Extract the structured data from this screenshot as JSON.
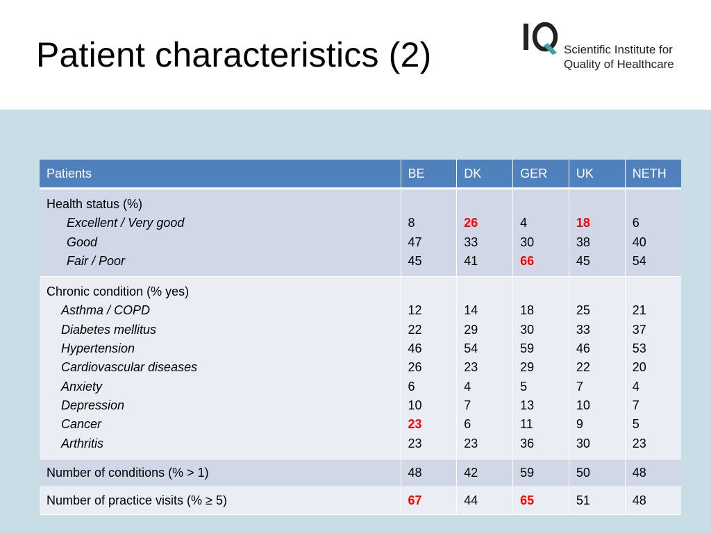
{
  "title": "Patient characteristics (2)",
  "logo": {
    "mark": "IQ",
    "line1": "Scientific Institute for",
    "line2": "Quality of Healthcare"
  },
  "colors": {
    "header_bg": "#4f81bd",
    "row_odd": "#d0d8e8",
    "row_even": "#e9edf4",
    "band": "#c9dde4",
    "highlight": "#ff0000",
    "logo_accent": "#3aa3a3"
  },
  "table": {
    "headers": [
      "Patients",
      "BE",
      "DK",
      "GER",
      "UK",
      "NETH"
    ],
    "health": {
      "label": "Health status (%)",
      "items": [
        "Excellent / Very good",
        "Good",
        "Fair / Poor"
      ],
      "values": {
        "BE": [
          "8",
          "47",
          "45"
        ],
        "DK": [
          "26",
          "33",
          "41"
        ],
        "GER": [
          "4",
          "30",
          "66"
        ],
        "UK": [
          "18",
          "38",
          "45"
        ],
        "NETH": [
          "6",
          "40",
          "54"
        ]
      }
    },
    "chronic": {
      "label": "Chronic condition  (% yes)",
      "items": [
        "Asthma / COPD",
        "Diabetes mellitus",
        "Hypertension",
        "Cardiovascular diseases",
        "Anxiety",
        "Depression",
        "Cancer",
        "Arthritis"
      ],
      "values": {
        "BE": [
          "12",
          "22",
          "46",
          "26",
          "6",
          "10",
          "23",
          "23"
        ],
        "DK": [
          "14",
          "29",
          "54",
          "23",
          "4",
          "7",
          "6",
          "23"
        ],
        "GER": [
          "18",
          "30",
          "59",
          "29",
          "5",
          "13",
          "11",
          "36"
        ],
        "UK": [
          "25",
          "33",
          "46",
          "22",
          "7",
          "10",
          "9",
          "30"
        ],
        "NETH": [
          "21",
          "37",
          "53",
          "20",
          "4",
          "7",
          "5",
          "23"
        ]
      }
    },
    "conditions": {
      "label": "Number of conditions (% > 1)",
      "values": {
        "BE": "48",
        "DK": "42",
        "GER": "59",
        "UK": "50",
        "NETH": "48"
      }
    },
    "visits": {
      "label": "Number of practice visits (% ≥ 5)",
      "values": {
        "BE": "67",
        "DK": "44",
        "GER": "65",
        "UK": "51",
        "NETH": "48"
      }
    }
  }
}
